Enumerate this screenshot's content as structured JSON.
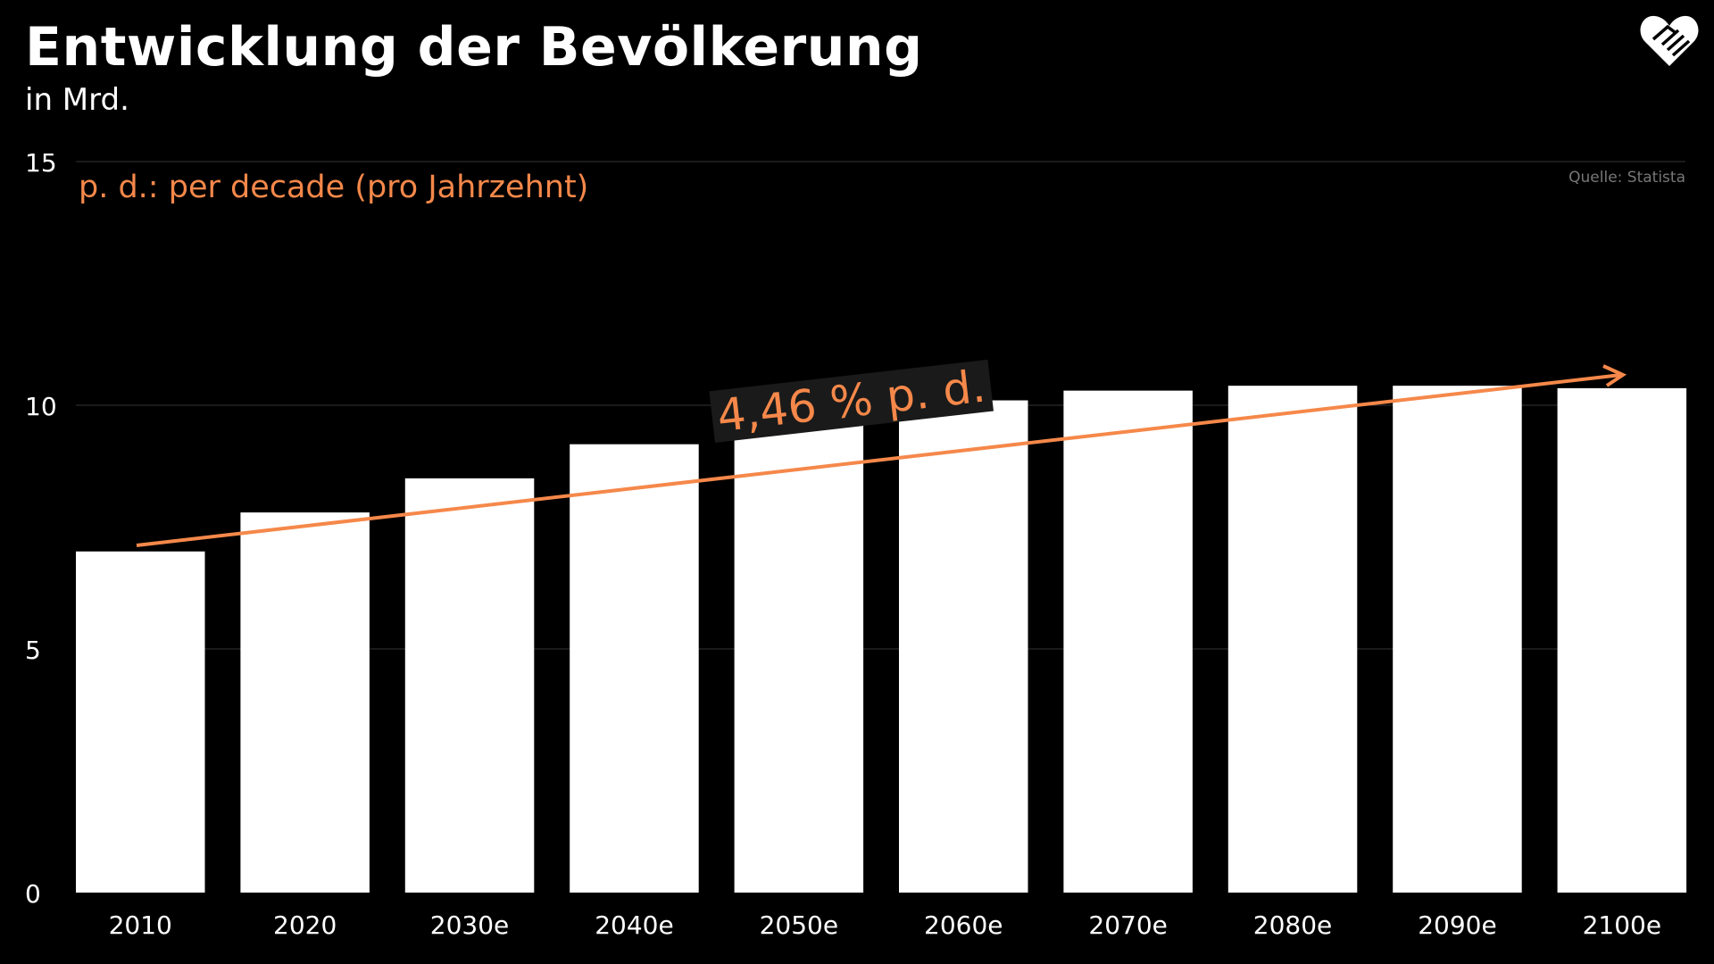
{
  "chart_data": {
    "type": "bar",
    "title": "Entwicklung der Bevölkerung",
    "subtitle": "in Mrd.",
    "categories": [
      "2010",
      "2020",
      "2030e",
      "2040e",
      "2050e",
      "2060e",
      "2070e",
      "2080e",
      "2090e",
      "2100e"
    ],
    "values": [
      7.0,
      7.8,
      8.5,
      9.2,
      9.7,
      10.1,
      10.3,
      10.4,
      10.4,
      10.35
    ],
    "ylim": [
      0,
      15
    ],
    "yticks": [
      "0",
      "5",
      "10",
      "15"
    ],
    "grid": true,
    "bar_color": "#ffffff",
    "trend": {
      "label": "4,46 % p. d.",
      "color": "#f5884a"
    },
    "annotation": "p. d.: per decade (pro Jahrzehnt)",
    "source": "Quelle: Statista"
  },
  "logo": {
    "icon": "heart-handshake-icon"
  }
}
